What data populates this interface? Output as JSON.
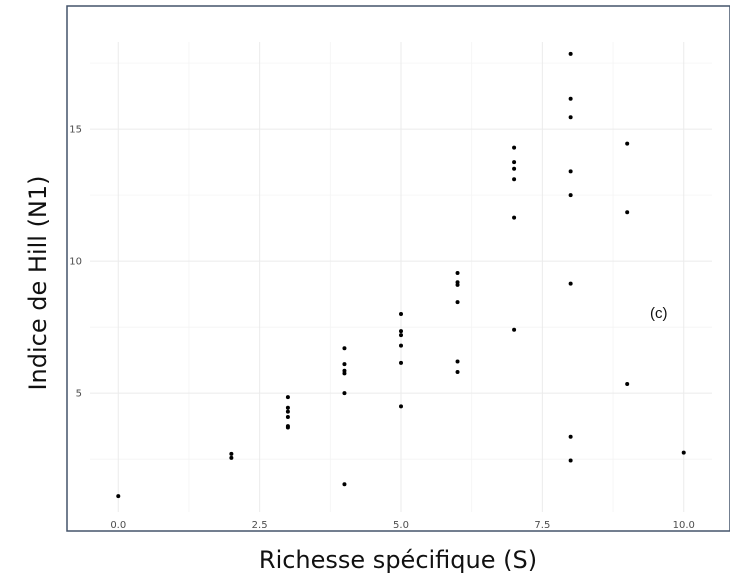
{
  "chart_data": {
    "type": "scatter",
    "title": "",
    "xlabel": "Richesse spécifique (S)",
    "ylabel": "Indice de Hill (N1)",
    "xlim": [
      -0.5,
      10.5
    ],
    "ylim": [
      0.5,
      18.3
    ],
    "grid": true,
    "annotation": "(c)",
    "x_ticks": [
      0.0,
      2.5,
      5.0,
      7.5,
      10.0
    ],
    "x_tick_labels": [
      "0.0",
      "2.5",
      "5.0",
      "7.5",
      "10.0"
    ],
    "y_ticks": [
      5,
      10,
      15
    ],
    "y_tick_labels": [
      "5",
      "10",
      "15"
    ],
    "series": [
      {
        "x": [
          0,
          2,
          2,
          3,
          3,
          3,
          3,
          3,
          3,
          4,
          4,
          4,
          4,
          4,
          4,
          5,
          5,
          5,
          5,
          5,
          5,
          6,
          6,
          6,
          6,
          6,
          6,
          7,
          7,
          7,
          7,
          7,
          7,
          8,
          8,
          8,
          8,
          8,
          8,
          8,
          8,
          9,
          9,
          9,
          10
        ],
        "y": [
          1.1,
          2.7,
          2.55,
          4.85,
          4.45,
          4.3,
          4.1,
          3.75,
          3.7,
          6.7,
          6.1,
          5.85,
          5.75,
          5.0,
          1.55,
          8.0,
          7.35,
          7.2,
          6.8,
          6.15,
          4.5,
          9.55,
          9.2,
          9.1,
          8.45,
          6.2,
          5.8,
          14.3,
          13.75,
          13.5,
          13.1,
          11.65,
          7.4,
          17.85,
          16.15,
          15.45,
          13.4,
          12.5,
          9.15,
          3.35,
          2.45,
          14.45,
          11.85,
          5.35,
          2.75
        ]
      }
    ]
  }
}
